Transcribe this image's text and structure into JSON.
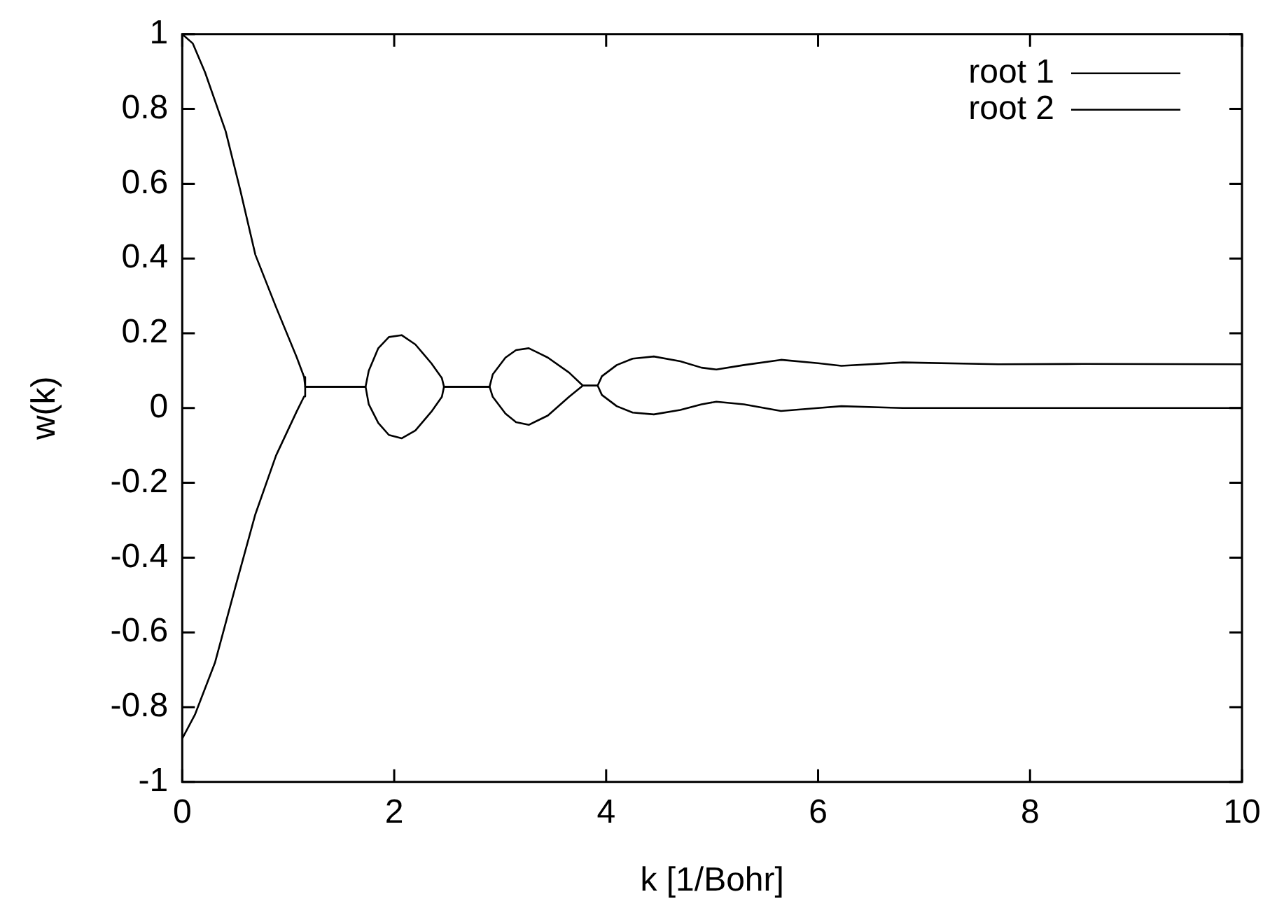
{
  "chart_data": {
    "type": "line",
    "xlabel": "k [1/Bohr]",
    "ylabel": "w(k)",
    "xlim": [
      0,
      10
    ],
    "xticks": [
      0,
      2,
      4,
      6,
      8,
      10
    ],
    "ylim": [
      -1,
      1
    ],
    "yticks": [
      -1,
      -0.8,
      -0.6,
      -0.4,
      -0.2,
      0,
      0.2,
      0.4,
      0.6,
      0.8,
      1
    ],
    "grid": false,
    "legend": "top right",
    "marker": "none",
    "line_style": "solid",
    "series": [
      {
        "name": "root 1",
        "color": "#000000",
        "x": [
          0,
          0.1,
          0.215,
          0.41,
          0.55,
          0.69,
          0.885,
          1.08,
          1.15,
          1.16,
          1.73,
          1.76,
          1.85,
          1.95,
          2.07,
          2.2,
          2.35,
          2.45,
          2.47,
          2.9,
          2.93,
          3.05,
          3.15,
          3.27,
          3.45,
          3.65,
          3.78,
          3.92,
          3.96,
          4.1,
          4.25,
          4.45,
          4.7,
          4.9,
          5.04,
          5.3,
          5.65,
          6.0,
          6.22,
          6.8,
          7.7,
          8.5,
          10
        ],
        "values": [
          1,
          0.975,
          0.898,
          0.74,
          0.58,
          0.41,
          0.27,
          0.136,
          0.083,
          0.057,
          0.057,
          0.1,
          0.16,
          0.19,
          0.195,
          0.17,
          0.12,
          0.08,
          0.057,
          0.057,
          0.09,
          0.135,
          0.155,
          0.16,
          0.135,
          0.095,
          0.06,
          0.06,
          0.085,
          0.115,
          0.132,
          0.138,
          0.125,
          0.108,
          0.103,
          0.115,
          0.129,
          0.12,
          0.113,
          0.122,
          0.117,
          0.118,
          0.117
        ]
      },
      {
        "name": "root 2",
        "color": "#000000",
        "x": [
          0,
          0.12,
          0.31,
          0.5,
          0.69,
          0.885,
          1.08,
          1.15,
          1.16,
          1.73,
          1.76,
          1.85,
          1.95,
          2.07,
          2.2,
          2.35,
          2.45,
          2.47,
          2.9,
          2.93,
          3.05,
          3.15,
          3.27,
          3.45,
          3.65,
          3.78,
          3.92,
          3.96,
          4.1,
          4.25,
          4.45,
          4.7,
          4.9,
          5.04,
          5.3,
          5.65,
          6.0,
          6.22,
          6.8,
          10
        ],
        "values": [
          -0.884,
          -0.82,
          -0.68,
          -0.48,
          -0.284,
          -0.127,
          -0.009,
          0.031,
          0.057,
          0.057,
          0.01,
          -0.04,
          -0.072,
          -0.081,
          -0.06,
          -0.01,
          0.03,
          0.057,
          0.057,
          0.03,
          -0.015,
          -0.038,
          -0.045,
          -0.02,
          0.03,
          0.06,
          0.06,
          0.035,
          0.005,
          -0.012,
          -0.017,
          -0.005,
          0.01,
          0.017,
          0.01,
          -0.008,
          0,
          0.005,
          0,
          0
        ]
      }
    ]
  }
}
